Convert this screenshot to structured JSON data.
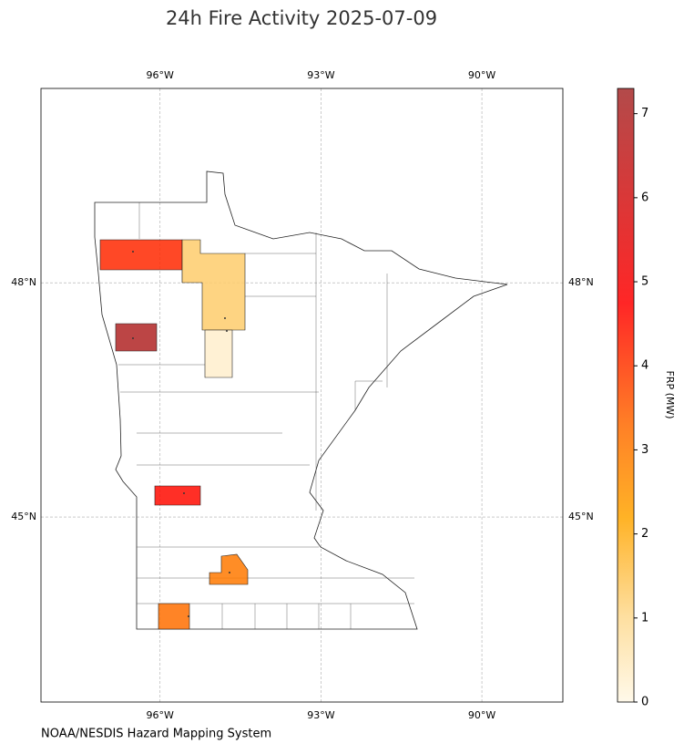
{
  "chart_data": {
    "type": "choropleth",
    "title": "24h Fire Activity 2025-07-09",
    "credit": "NOAA/NESDIS Hazard Mapping System",
    "xlim": [
      -98.22,
      -88.49
    ],
    "ylim": [
      42.63,
      50.49
    ],
    "xticks": [
      {
        "value": -96,
        "label": "96°W"
      },
      {
        "value": -93,
        "label": "93°W"
      },
      {
        "value": -90,
        "label": "90°W"
      }
    ],
    "yticks": [
      {
        "value": 45,
        "label": "45°N"
      },
      {
        "value": 48,
        "label": "48°N"
      }
    ],
    "grid": true,
    "values": [
      4.2,
      1.3,
      7.0,
      0.3,
      4.6,
      3.0,
      3.2
    ],
    "colorbar": {
      "label": "FRP (MW)",
      "lim": [
        0,
        7.3
      ],
      "ticks": [
        0,
        1,
        2,
        3,
        4,
        5,
        6,
        7
      ]
    }
  }
}
